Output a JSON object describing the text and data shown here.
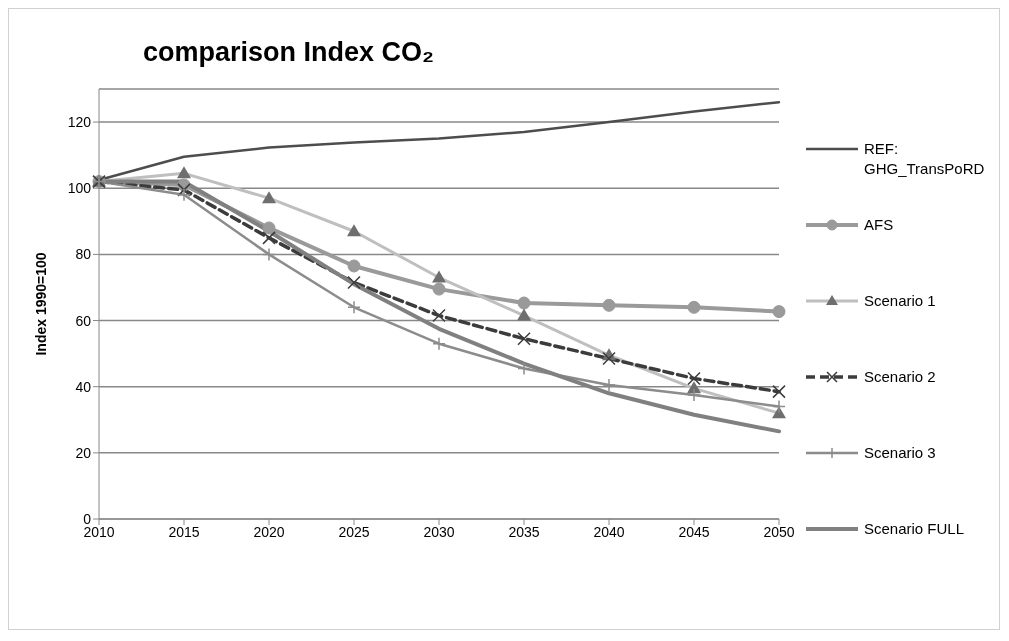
{
  "chart_data": {
    "type": "line",
    "title": "comparison Index CO₂",
    "ylabel": "Index 1990=100",
    "categories": [
      "2010",
      "2015",
      "2020",
      "2025",
      "2030",
      "2035",
      "2040",
      "2045",
      "2050"
    ],
    "ylim": [
      0,
      130
    ],
    "yticks": [
      0,
      20,
      40,
      60,
      80,
      100,
      120
    ],
    "grid": "y",
    "legend": "right",
    "series": [
      {
        "name": "REF: GHG_TransPoRD",
        "color": "#4d4d4d",
        "marker": "none",
        "line_style": "solid",
        "values": [
          102.5,
          109.5,
          112.3,
          113.8,
          115,
          117,
          120,
          123.2,
          126
        ]
      },
      {
        "name": "AFS",
        "color": "#9a9a9a",
        "marker": "circle",
        "line_style": "solid",
        "values": [
          102,
          101,
          88,
          76.5,
          69.5,
          65.3,
          64.6,
          64,
          62.7
        ]
      },
      {
        "name": "Scenario 1",
        "color": "#bfbfbf",
        "marker": "triangle",
        "line_style": "solid",
        "values": [
          102,
          104.5,
          97,
          87,
          73,
          61.5,
          49.5,
          39.5,
          32
        ]
      },
      {
        "name": "Scenario 2",
        "color": "#3c3c3c",
        "marker": "cross",
        "line_style": "dashed",
        "values": [
          102,
          99.5,
          85,
          71.5,
          61.5,
          54.5,
          48.5,
          42.5,
          38.5
        ]
      },
      {
        "name": "Scenario 3",
        "color": "#8c8c8c",
        "marker": "cross",
        "line_style": "solid",
        "values": [
          102,
          98,
          80,
          64,
          53,
          45.5,
          40.5,
          37.5,
          34
        ]
      },
      {
        "name": "Scenario FULL",
        "color": "#808080",
        "marker": "none",
        "line_style": "solid",
        "values": [
          102,
          102,
          87,
          71,
          57.5,
          47,
          38,
          31.5,
          26.5
        ]
      }
    ]
  }
}
